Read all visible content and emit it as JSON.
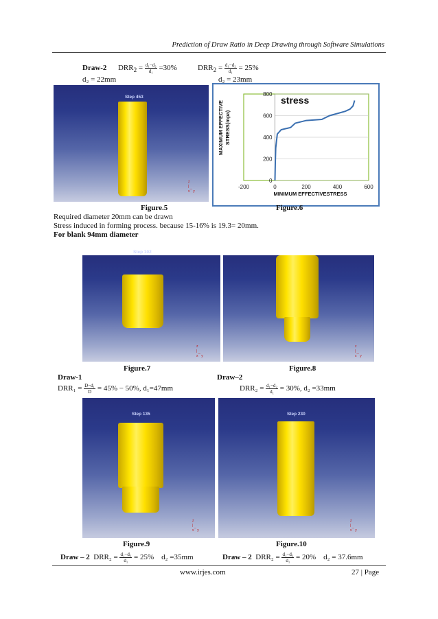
{
  "header": {
    "running_title": "Prediction of Draw Ratio in Deep Drawing through Software Simulations"
  },
  "top": {
    "draw_label": "Draw-2",
    "drr_sym": "DRR",
    "sub2": "2",
    "eq": "=",
    "frac_num": "d₁−d₂",
    "frac_den": "d₁",
    "val_a": "=30%",
    "val_b": "= 25%",
    "d2_a": "d₂ = 22mm",
    "d2_b": "d₂ = 23mm"
  },
  "figures": {
    "fig5": {
      "step": "Step 453",
      "caption": "Figure.5"
    },
    "fig6": {
      "caption": "Figure.6"
    },
    "fig7": {
      "step": "Step 102",
      "caption": "Figure.7"
    },
    "fig8": {
      "caption": "Figure.8"
    },
    "fig9": {
      "step": "Step 135",
      "caption": "Figure.9"
    },
    "fig10": {
      "step": "Step 230",
      "caption": "Figure.10"
    }
  },
  "axes_triad": {
    "z": "z",
    "x": "x",
    "y": "y"
  },
  "body_text": {
    "line1": "Required diameter 20mm can be drawn",
    "line2": "Stress induced in forming process. because 15-16% is 19.3= 20mm.",
    "line3": "For blank 94mm diameter"
  },
  "mid": {
    "draw1": "Draw-1",
    "drr1": "DRR₁ =",
    "frac1_num": "D−d₁",
    "frac1_den": "D",
    "drr1_val": "= 45% − 50%,   d₁=47mm",
    "draw2": "Draw–2",
    "drr2": "DRR₂ =",
    "frac_num": "d₁−d₂",
    "frac_den": "d₁",
    "drr2_val": "= 30%, d₂ =33mm"
  },
  "bottom": {
    "left_label": "Draw – 2",
    "left_drr": "DRR₂ =",
    "left_val": "= 25%",
    "left_d2": "d₂ =35mm",
    "right_label": "Draw – 2",
    "right_drr": "DRR₂ =",
    "right_val": "= 20%",
    "right_d2": "d₂ = 37.6mm",
    "frac_num": "d₁−d₂",
    "frac_den": "d₁"
  },
  "footer": {
    "url": "www.irjes.com",
    "page": "27 | Page"
  },
  "chart_data": {
    "type": "line",
    "title": "stress",
    "xlabel": "MINIMUM EFFECTIVESTRESS",
    "ylabel_line1": "MAXIMUM  EFFECTIVE",
    "ylabel_line2": "STRESS(mpa)",
    "xlim": [
      -200,
      600
    ],
    "ylim": [
      0,
      800
    ],
    "xticks": [
      "-200",
      "0",
      "200",
      "400",
      "600"
    ],
    "yticks": [
      "0",
      "200",
      "400",
      "600",
      "800"
    ],
    "grid": "horizontal",
    "line_color": "#3a6fb0",
    "series": [
      {
        "name": "",
        "x": [
          0,
          2,
          5,
          15,
          40,
          70,
          100,
          130,
          200,
          300,
          350,
          400,
          450,
          480,
          500,
          510
        ],
        "y": [
          0,
          150,
          300,
          430,
          470,
          480,
          490,
          530,
          555,
          565,
          600,
          620,
          640,
          660,
          690,
          740
        ]
      }
    ]
  }
}
